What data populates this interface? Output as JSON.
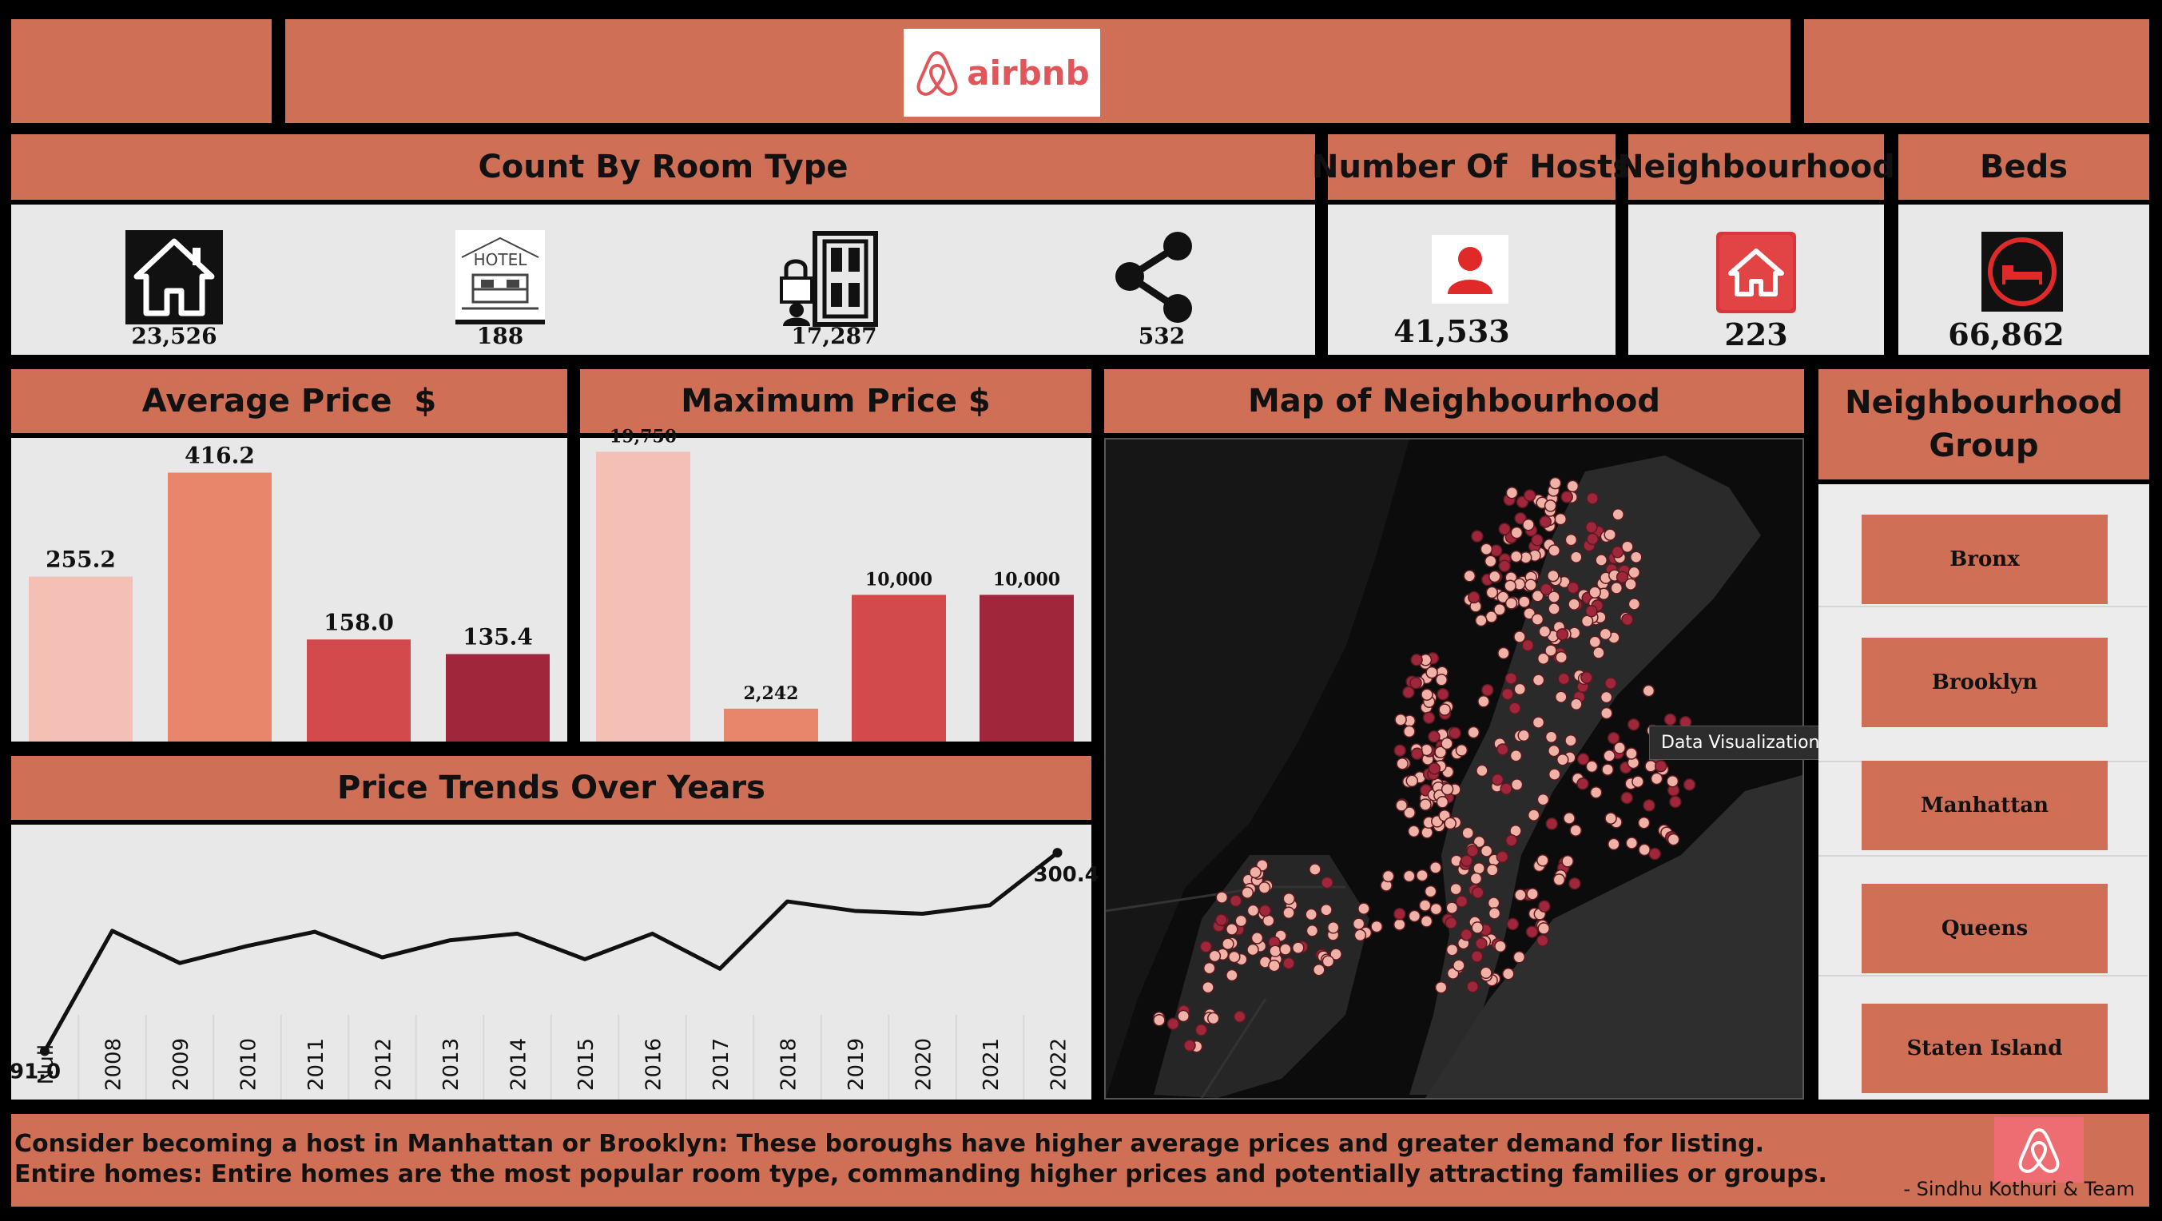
{
  "header": {
    "brand": "airbnb"
  },
  "room_type": {
    "title": "Count By Room Type",
    "items": [
      {
        "icon": "house-icon",
        "value": "23,526"
      },
      {
        "icon": "hotel-icon",
        "value": "188"
      },
      {
        "icon": "private-room-door-icon",
        "value": "17,287"
      },
      {
        "icon": "share-icon",
        "value": "532"
      }
    ]
  },
  "kpis": {
    "hosts": {
      "title": "Number Of  Hosts",
      "value": "41,533",
      "icon": "person-icon"
    },
    "neighbourhood": {
      "title": "Neighbourhood",
      "value": "223",
      "icon": "home-icon"
    },
    "beds": {
      "title": "Beds",
      "value": "66,862",
      "icon": "bed-icon"
    }
  },
  "average_price": {
    "title": "Average Price  $"
  },
  "maximum_price": {
    "title": "Maximum Price $"
  },
  "price_trends": {
    "title": "Price Trends Over Years"
  },
  "map": {
    "title": "Map of Neighbourhood",
    "tooltip": "Data Visualization"
  },
  "neighbourhood_group": {
    "title": "Neighbourhood Group",
    "items": [
      "Bronx",
      "Brooklyn",
      "Manhattan",
      "Queens",
      "Staten Island"
    ]
  },
  "footer": {
    "lines": [
      "Consider becoming a host in Manhattan or Brooklyn: These boroughs have higher average prices and greater demand for listing.",
      "Entire homes: Entire homes are the most popular room type, commanding higher prices and potentially attracting families or groups."
    ],
    "credit": "- Sindhu Kothuri & Team"
  },
  "colors": {
    "panel": "#cf6f55",
    "bar1": "#f4bfb4",
    "bar2": "#e8866c",
    "bar3": "#d24a4c",
    "bar4": "#a0263b"
  },
  "chart_data": [
    {
      "type": "bar",
      "title": "Average Price  $",
      "categories": [
        "",
        "",
        "",
        ""
      ],
      "values": [
        255.2,
        416.2,
        158.0,
        135.4
      ],
      "labels": [
        "255.2",
        "416.2",
        "158.0",
        "135.4"
      ],
      "ylim": [
        0,
        470
      ]
    },
    {
      "type": "bar",
      "title": "Maximum Price $",
      "categories": [
        "",
        "",
        "",
        ""
      ],
      "values": [
        19750,
        2242,
        10000,
        10000
      ],
      "labels": [
        "19,750",
        "2,242",
        "10,000",
        "10,000"
      ],
      "ylim": [
        0,
        20700
      ]
    },
    {
      "type": "line",
      "title": "Price Trends Over Years",
      "x": [
        "Null",
        "2008",
        "2009",
        "2010",
        "2011",
        "2012",
        "2013",
        "2014",
        "2015",
        "2016",
        "2017",
        "2018",
        "2019",
        "2020",
        "2021",
        "2022"
      ],
      "values": [
        91.0,
        218,
        184,
        202,
        217,
        190,
        208,
        215,
        188,
        215,
        178,
        249,
        239,
        236,
        245,
        300.4
      ],
      "labels": {
        "first": "91.0",
        "last": "300.4"
      },
      "ylim": [
        40,
        330
      ]
    }
  ]
}
